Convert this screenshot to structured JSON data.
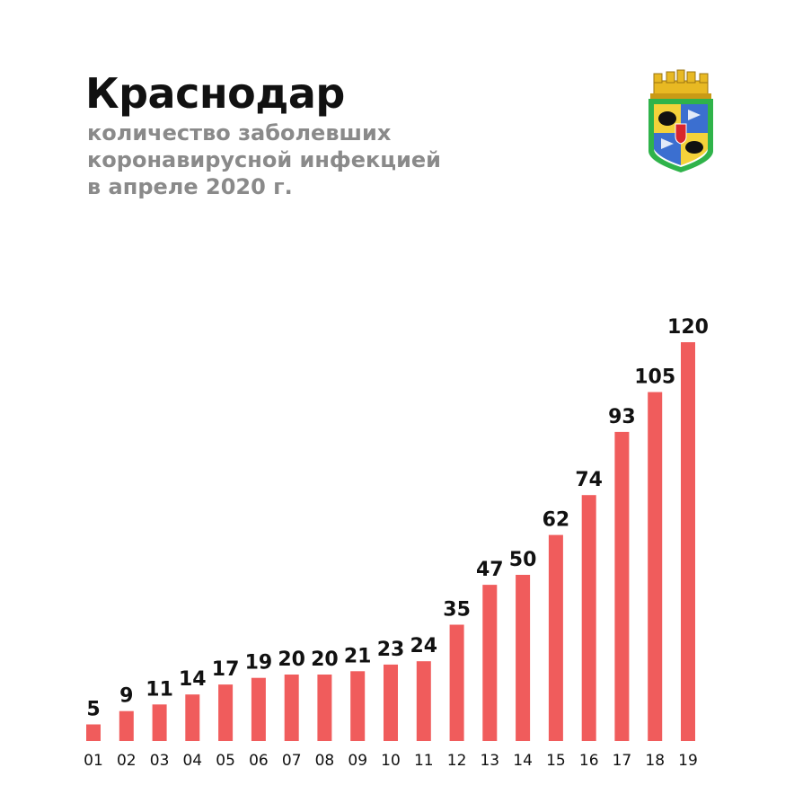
{
  "header": {
    "title": "Краснодар",
    "subtitle_lines": [
      "количество заболевших",
      "коронавирусной инфекцией",
      "в апреле 2020 г."
    ]
  },
  "emblem": {
    "icon": "krasnodar-coat-of-arms-icon"
  },
  "colors": {
    "bar": "#f05c5c",
    "title": "#111111",
    "subtitle": "#8a8a8a",
    "emblem_frame": "#2fb34a",
    "emblem_gold": "#e8b923"
  },
  "chart_data": {
    "type": "bar",
    "title": "Краснодар",
    "subtitle": "количество заболевших коронавирусной инфекцией в апреле 2020 г.",
    "categories": [
      "01",
      "02",
      "03",
      "04",
      "05",
      "06",
      "07",
      "08",
      "09",
      "10",
      "11",
      "12",
      "13",
      "14",
      "15",
      "16",
      "17",
      "18",
      "19"
    ],
    "values": [
      5,
      9,
      11,
      14,
      17,
      19,
      20,
      20,
      21,
      23,
      24,
      35,
      47,
      50,
      62,
      74,
      93,
      105,
      120
    ],
    "xlabel": "",
    "ylabel": "",
    "ylim": [
      0,
      120
    ],
    "grid": false,
    "data_labels": true
  }
}
